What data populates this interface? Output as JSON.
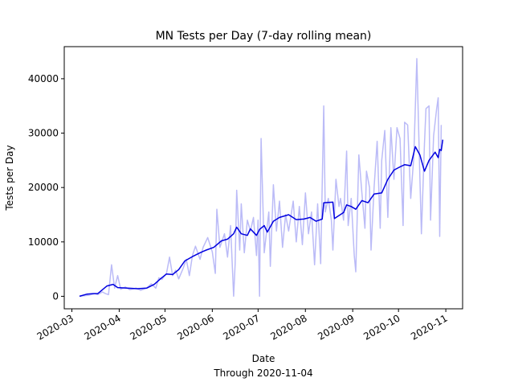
{
  "chart_data": {
    "type": "line",
    "title": "MN Tests per Day (7-day rolling mean)",
    "xlabel": "Date",
    "xlabel_note": "Through 2020-11-04",
    "ylabel": "Tests per Day",
    "x_axis_type": "date",
    "xlim": [
      "2020-02-25",
      "2020-11-12"
    ],
    "ylim": [
      -2300,
      45900
    ],
    "x_ticks": [
      "2020-03-01",
      "2020-04-01",
      "2020-05-01",
      "2020-06-01",
      "2020-07-01",
      "2020-08-01",
      "2020-09-01",
      "2020-10-01",
      "2020-11-01"
    ],
    "x_tick_labels": [
      "2020-03",
      "2020-04",
      "2020-05",
      "2020-06",
      "2020-07",
      "2020-08",
      "2020-09",
      "2020-10",
      "2020-11"
    ],
    "y_ticks": [
      0,
      10000,
      20000,
      30000,
      40000
    ],
    "y_tick_labels": [
      "0",
      "10000",
      "20000",
      "30000",
      "40000"
    ],
    "grid": false,
    "legend": "none",
    "series": [
      {
        "role": "daily",
        "color": "#bbbbf7",
        "points": [
          [
            "2020-03-06",
            0
          ],
          [
            "2020-03-12",
            200
          ],
          [
            "2020-03-16",
            500
          ],
          [
            "2020-03-18",
            300
          ],
          [
            "2020-03-21",
            800
          ],
          [
            "2020-03-23",
            500
          ],
          [
            "2020-03-25",
            300
          ],
          [
            "2020-03-27",
            5800
          ],
          [
            "2020-03-29",
            1500
          ],
          [
            "2020-03-31",
            3800
          ],
          [
            "2020-04-02",
            1300
          ],
          [
            "2020-04-05",
            1700
          ],
          [
            "2020-04-08",
            1200
          ],
          [
            "2020-04-12",
            1500
          ],
          [
            "2020-04-15",
            1100
          ],
          [
            "2020-04-19",
            1500
          ],
          [
            "2020-04-22",
            2300
          ],
          [
            "2020-04-25",
            1500
          ],
          [
            "2020-04-27",
            3400
          ],
          [
            "2020-04-29",
            3100
          ],
          [
            "2020-05-02",
            4200
          ],
          [
            "2020-05-04",
            7200
          ],
          [
            "2020-05-06",
            3800
          ],
          [
            "2020-05-08",
            4800
          ],
          [
            "2020-05-10",
            3200
          ],
          [
            "2020-05-13",
            5200
          ],
          [
            "2020-05-15",
            6800
          ],
          [
            "2020-05-17",
            3800
          ],
          [
            "2020-05-19",
            7500
          ],
          [
            "2020-05-21",
            9200
          ],
          [
            "2020-05-24",
            6800
          ],
          [
            "2020-05-26",
            9000
          ],
          [
            "2020-05-29",
            10800
          ],
          [
            "2020-06-01",
            8200
          ],
          [
            "2020-06-03",
            4200
          ],
          [
            "2020-06-04",
            16000
          ],
          [
            "2020-06-06",
            9000
          ],
          [
            "2020-06-09",
            11500
          ],
          [
            "2020-06-11",
            7200
          ],
          [
            "2020-06-13",
            13000
          ],
          [
            "2020-06-15",
            0
          ],
          [
            "2020-06-16",
            6000
          ],
          [
            "2020-06-17",
            19500
          ],
          [
            "2020-06-19",
            8500
          ],
          [
            "2020-06-20",
            17000
          ],
          [
            "2020-06-22",
            8000
          ],
          [
            "2020-06-24",
            14000
          ],
          [
            "2020-06-26",
            12000
          ],
          [
            "2020-06-28",
            14500
          ],
          [
            "2020-06-30",
            7500
          ],
          [
            "2020-07-01",
            14000
          ],
          [
            "2020-07-02",
            0
          ],
          [
            "2020-07-03",
            29000
          ],
          [
            "2020-07-05",
            8000
          ],
          [
            "2020-07-08",
            15500
          ],
          [
            "2020-07-09",
            5500
          ],
          [
            "2020-07-11",
            20500
          ],
          [
            "2020-07-13",
            12000
          ],
          [
            "2020-07-15",
            17500
          ],
          [
            "2020-07-17",
            9000
          ],
          [
            "2020-07-19",
            15000
          ],
          [
            "2020-07-21",
            12000
          ],
          [
            "2020-07-24",
            17500
          ],
          [
            "2020-07-26",
            10000
          ],
          [
            "2020-07-28",
            16500
          ],
          [
            "2020-07-30",
            9500
          ],
          [
            "2020-08-01",
            19000
          ],
          [
            "2020-08-03",
            11500
          ],
          [
            "2020-08-05",
            15500
          ],
          [
            "2020-08-07",
            5800
          ],
          [
            "2020-08-09",
            17000
          ],
          [
            "2020-08-11",
            6000
          ],
          [
            "2020-08-13",
            35000
          ],
          [
            "2020-08-14",
            15500
          ],
          [
            "2020-08-16",
            18000
          ],
          [
            "2020-08-18",
            14000
          ],
          [
            "2020-08-19",
            8500
          ],
          [
            "2020-08-21",
            21500
          ],
          [
            "2020-08-23",
            16500
          ],
          [
            "2020-08-24",
            18000
          ],
          [
            "2020-08-26",
            14000
          ],
          [
            "2020-08-28",
            26700
          ],
          [
            "2020-08-29",
            13000
          ],
          [
            "2020-08-31",
            18000
          ],
          [
            "2020-09-02",
            7500
          ],
          [
            "2020-09-03",
            4500
          ],
          [
            "2020-09-05",
            26000
          ],
          [
            "2020-09-07",
            19000
          ],
          [
            "2020-09-09",
            12500
          ],
          [
            "2020-09-10",
            23000
          ],
          [
            "2020-09-12",
            20000
          ],
          [
            "2020-09-13",
            8500
          ],
          [
            "2020-09-15",
            20000
          ],
          [
            "2020-09-17",
            28500
          ],
          [
            "2020-09-19",
            12500
          ],
          [
            "2020-09-20",
            25000
          ],
          [
            "2020-09-22",
            30500
          ],
          [
            "2020-09-24",
            14500
          ],
          [
            "2020-09-26",
            31000
          ],
          [
            "2020-09-28",
            21500
          ],
          [
            "2020-09-30",
            31000
          ],
          [
            "2020-10-02",
            29000
          ],
          [
            "2020-10-04",
            13000
          ],
          [
            "2020-10-05",
            32000
          ],
          [
            "2020-10-07",
            31500
          ],
          [
            "2020-10-09",
            18000
          ],
          [
            "2020-10-11",
            25500
          ],
          [
            "2020-10-13",
            43700
          ],
          [
            "2020-10-15",
            22000
          ],
          [
            "2020-10-16",
            11500
          ],
          [
            "2020-10-18",
            28000
          ],
          [
            "2020-10-19",
            34500
          ],
          [
            "2020-10-21",
            35000
          ],
          [
            "2020-10-22",
            14000
          ],
          [
            "2020-10-24",
            29500
          ],
          [
            "2020-10-26",
            34500
          ],
          [
            "2020-10-27",
            36500
          ],
          [
            "2020-10-28",
            11000
          ],
          [
            "2020-10-29",
            31500
          ]
        ]
      },
      {
        "role": "rolling_mean",
        "color": "#0000e0",
        "points": [
          [
            "2020-03-06",
            0
          ],
          [
            "2020-03-11",
            400
          ],
          [
            "2020-03-15",
            500
          ],
          [
            "2020-03-18",
            500
          ],
          [
            "2020-03-21",
            1200
          ],
          [
            "2020-03-24",
            1900
          ],
          [
            "2020-03-28",
            2200
          ],
          [
            "2020-03-31",
            1600
          ],
          [
            "2020-04-06",
            1500
          ],
          [
            "2020-04-13",
            1400
          ],
          [
            "2020-04-19",
            1500
          ],
          [
            "2020-04-24",
            2200
          ],
          [
            "2020-04-28",
            3200
          ],
          [
            "2020-05-02",
            4100
          ],
          [
            "2020-05-06",
            4000
          ],
          [
            "2020-05-10",
            4900
          ],
          [
            "2020-05-14",
            6500
          ],
          [
            "2020-05-19",
            7300
          ],
          [
            "2020-05-24",
            8000
          ],
          [
            "2020-05-28",
            8500
          ],
          [
            "2020-06-02",
            9000
          ],
          [
            "2020-06-07",
            10200
          ],
          [
            "2020-06-11",
            10500
          ],
          [
            "2020-06-15",
            11500
          ],
          [
            "2020-06-17",
            12700
          ],
          [
            "2020-06-20",
            11500
          ],
          [
            "2020-06-24",
            11200
          ],
          [
            "2020-06-26",
            12400
          ],
          [
            "2020-06-30",
            11200
          ],
          [
            "2020-07-02",
            12300
          ],
          [
            "2020-07-05",
            13000
          ],
          [
            "2020-07-07",
            11800
          ],
          [
            "2020-07-11",
            13800
          ],
          [
            "2020-07-15",
            14500
          ],
          [
            "2020-07-21",
            15000
          ],
          [
            "2020-07-26",
            14100
          ],
          [
            "2020-07-31",
            14200
          ],
          [
            "2020-08-04",
            14500
          ],
          [
            "2020-08-08",
            13800
          ],
          [
            "2020-08-12",
            14200
          ],
          [
            "2020-08-13",
            17200
          ],
          [
            "2020-08-19",
            17300
          ],
          [
            "2020-08-20",
            14300
          ],
          [
            "2020-08-26",
            15400
          ],
          [
            "2020-08-28",
            16800
          ],
          [
            "2020-08-31",
            16500
          ],
          [
            "2020-09-03",
            16000
          ],
          [
            "2020-09-07",
            17600
          ],
          [
            "2020-09-11",
            17200
          ],
          [
            "2020-09-15",
            18800
          ],
          [
            "2020-09-20",
            19000
          ],
          [
            "2020-09-24",
            21500
          ],
          [
            "2020-09-28",
            23200
          ],
          [
            "2020-10-02",
            23800
          ],
          [
            "2020-10-05",
            24200
          ],
          [
            "2020-10-09",
            24000
          ],
          [
            "2020-10-12",
            27500
          ],
          [
            "2020-10-15",
            26000
          ],
          [
            "2020-10-18",
            23000
          ],
          [
            "2020-10-21",
            25000
          ],
          [
            "2020-10-25",
            26500
          ],
          [
            "2020-10-27",
            25500
          ],
          [
            "2020-10-28",
            27000
          ],
          [
            "2020-10-29",
            26800
          ],
          [
            "2020-10-30",
            28800
          ]
        ]
      }
    ]
  }
}
